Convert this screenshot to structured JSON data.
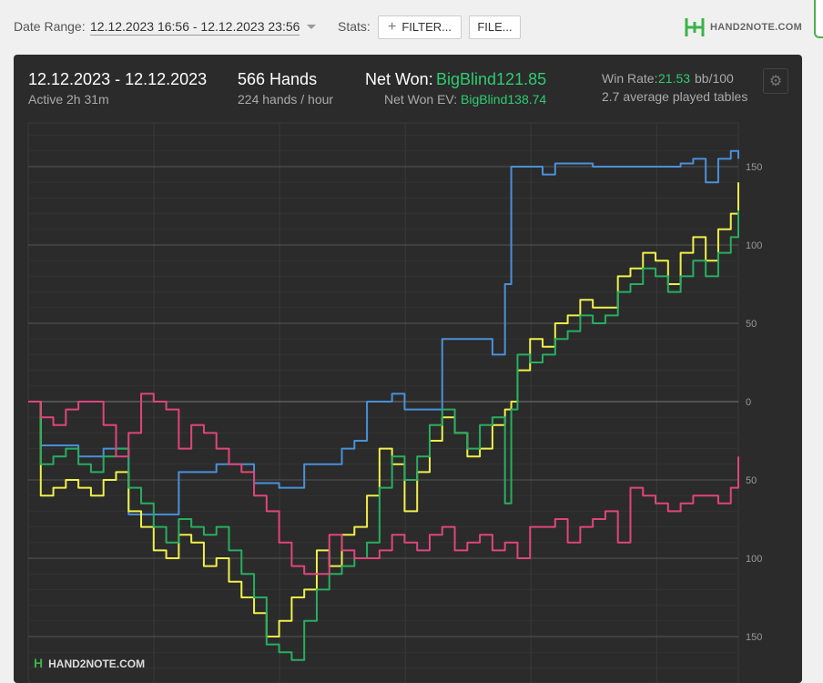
{
  "toolbar": {
    "date_range_label": "Date Range:",
    "date_range_value": "12.12.2023 16:56 - 12.12.2023 23:56",
    "stats_label": "Stats:",
    "filter_button": "FILTER...",
    "file_button": "FILE...",
    "logo_text": "HAND2NOTE.COM"
  },
  "summary": {
    "dates": "12.12.2023 - 12.12.2023",
    "active": "Active 2h 31m",
    "hands": "566 Hands",
    "hands_per_hour": "224 hands / hour",
    "net_won_label": "Net Won:",
    "net_won_value": "BigBlind121.85",
    "net_won_ev_label": "Net Won  EV:",
    "net_won_ev_value": "BigBlind138.74",
    "win_rate_label": "Win Rate:",
    "win_rate_value": "21.53",
    "win_rate_unit": "bb/100",
    "avg_tables": "2.7 average played tables"
  },
  "watermark": "HAND2NOTE.COM",
  "colors": {
    "blue": "#4a90d9",
    "yellow": "#f0f04a",
    "green": "#27ae60",
    "pink": "#e0457b",
    "accent": "#2ecc71"
  },
  "chart_data": {
    "type": "line",
    "title": "",
    "xlabel": "",
    "ylabel": "",
    "ylim": [
      -170,
      170
    ],
    "yticks": [
      150,
      100,
      50,
      0,
      -50,
      -100,
      -150
    ],
    "ytick_labels": [
      "150",
      "100",
      "50",
      "0",
      "50",
      "100",
      "150"
    ],
    "grid": true,
    "series": [
      {
        "color": "#4a90d9",
        "x": [
          0,
          10,
          20,
          30,
          40,
          50,
          60,
          70,
          80,
          90,
          100,
          110,
          120,
          130,
          140,
          150,
          160,
          170,
          180,
          190,
          200,
          210,
          220,
          230,
          240,
          250,
          260,
          270,
          280,
          290,
          300,
          310,
          320,
          330,
          340,
          350,
          360,
          370,
          380,
          385,
          390,
          400,
          410,
          420,
          430,
          440,
          450,
          460,
          470,
          480,
          490,
          500,
          510,
          520,
          530,
          540,
          550,
          560,
          566
        ],
        "values": [
          0,
          -28,
          -28,
          -28,
          -35,
          -35,
          -30,
          -30,
          -72,
          -72,
          -72,
          -72,
          -45,
          -45,
          -45,
          -40,
          -40,
          -40,
          -52,
          -52,
          -55,
          -55,
          -40,
          -40,
          -40,
          -30,
          -25,
          0,
          0,
          5,
          -5,
          -5,
          -5,
          40,
          40,
          40,
          40,
          30,
          75,
          150,
          150,
          150,
          145,
          152,
          152,
          152,
          150,
          150,
          150,
          150,
          150,
          150,
          150,
          152,
          155,
          140,
          155,
          160,
          155
        ]
      },
      {
        "color": "#f0f04a",
        "x": [
          0,
          10,
          20,
          30,
          40,
          50,
          60,
          70,
          80,
          90,
          100,
          110,
          120,
          130,
          140,
          150,
          160,
          170,
          180,
          190,
          200,
          210,
          220,
          230,
          240,
          250,
          260,
          270,
          280,
          290,
          300,
          310,
          320,
          330,
          340,
          350,
          360,
          370,
          380,
          385,
          390,
          400,
          410,
          420,
          430,
          440,
          450,
          460,
          470,
          480,
          490,
          500,
          510,
          520,
          530,
          540,
          550,
          560,
          566
        ],
        "values": [
          0,
          -60,
          -55,
          -50,
          -55,
          -60,
          -50,
          -45,
          -70,
          -80,
          -95,
          -100,
          -85,
          -90,
          -105,
          -100,
          -115,
          -125,
          -135,
          -150,
          -140,
          -125,
          -120,
          -95,
          -105,
          -85,
          -80,
          -60,
          -30,
          -40,
          -70,
          -45,
          -25,
          -10,
          -20,
          -35,
          -30,
          -15,
          -5,
          0,
          20,
          40,
          35,
          50,
          55,
          65,
          60,
          60,
          80,
          85,
          95,
          90,
          75,
          95,
          105,
          90,
          110,
          120,
          140
        ]
      },
      {
        "color": "#27ae60",
        "x": [
          0,
          10,
          20,
          30,
          40,
          50,
          60,
          70,
          80,
          90,
          100,
          110,
          120,
          130,
          140,
          150,
          160,
          170,
          180,
          190,
          200,
          210,
          220,
          230,
          240,
          250,
          260,
          270,
          280,
          290,
          300,
          310,
          320,
          330,
          340,
          350,
          360,
          370,
          380,
          385,
          390,
          400,
          410,
          420,
          430,
          440,
          450,
          460,
          470,
          480,
          490,
          500,
          510,
          520,
          530,
          540,
          550,
          560,
          566
        ],
        "values": [
          0,
          -40,
          -35,
          -30,
          -40,
          -45,
          -35,
          -30,
          -55,
          -65,
          -80,
          -90,
          -75,
          -80,
          -85,
          -80,
          -95,
          -110,
          -125,
          -155,
          -160,
          -165,
          -140,
          -120,
          -110,
          -105,
          -100,
          -90,
          -55,
          -35,
          -50,
          -35,
          -15,
          -5,
          -20,
          -30,
          -15,
          -10,
          -65,
          -5,
          30,
          25,
          30,
          40,
          45,
          55,
          50,
          55,
          70,
          75,
          85,
          80,
          70,
          80,
          90,
          80,
          95,
          105,
          122
        ]
      },
      {
        "color": "#e0457b",
        "x": [
          0,
          10,
          20,
          30,
          40,
          50,
          60,
          70,
          80,
          90,
          100,
          110,
          120,
          130,
          140,
          150,
          160,
          170,
          180,
          190,
          200,
          210,
          220,
          230,
          240,
          250,
          260,
          270,
          280,
          290,
          300,
          310,
          320,
          330,
          340,
          350,
          360,
          370,
          380,
          390,
          400,
          410,
          420,
          430,
          440,
          450,
          460,
          470,
          480,
          490,
          500,
          510,
          520,
          530,
          540,
          550,
          560,
          566
        ],
        "values": [
          0,
          -10,
          -15,
          -5,
          0,
          0,
          -15,
          -35,
          -20,
          5,
          0,
          -5,
          -30,
          -15,
          -20,
          -30,
          -40,
          -45,
          -60,
          -70,
          -90,
          -105,
          -110,
          -110,
          -85,
          -95,
          -100,
          -100,
          -95,
          -85,
          -90,
          -95,
          -85,
          -80,
          -95,
          -90,
          -85,
          -95,
          -90,
          -100,
          -80,
          -80,
          -75,
          -90,
          -80,
          -75,
          -70,
          -90,
          -55,
          -60,
          -65,
          -70,
          -65,
          -60,
          -60,
          -65,
          -55,
          -35
        ]
      }
    ]
  }
}
